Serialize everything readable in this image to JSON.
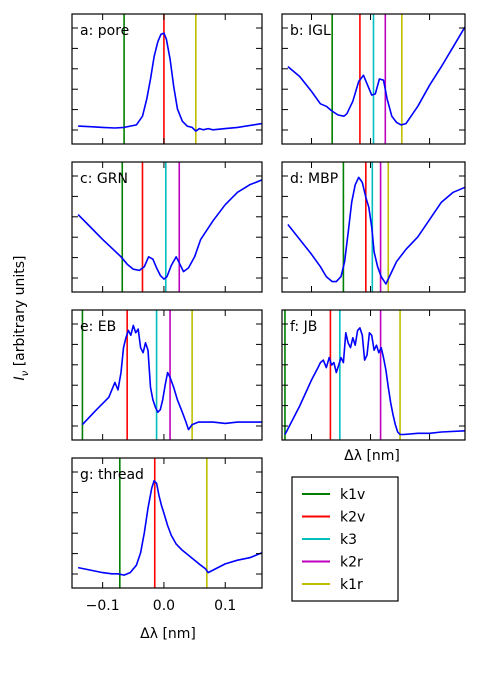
{
  "figure": {
    "ylabel": "I_ν [arbitrary units]",
    "ylabel_main": "I",
    "ylabel_sub": "ν",
    "ylabel_rest": " [arbitrary units]",
    "xlabel": "Δλ [nm]"
  },
  "legend": {
    "items": [
      {
        "label": "k1v",
        "color": "#008000"
      },
      {
        "label": "k2v",
        "color": "#ff0000"
      },
      {
        "label": "k3",
        "color": "#00bfbf"
      },
      {
        "label": "k2r",
        "color": "#bf00bf"
      },
      {
        "label": "k1r",
        "color": "#bfbf00"
      }
    ]
  },
  "chart_data": [
    {
      "type": "line",
      "title": "a: pore",
      "xlim": [
        -0.15,
        0.16
      ],
      "ylim": [
        0,
        1
      ],
      "x_ticks": [
        -0.1,
        0.0,
        0.1
      ],
      "x_tick_labels": [],
      "line_color": "#0000ff",
      "series": [
        {
          "x": [
            -0.14,
            -0.12,
            -0.1,
            -0.08,
            -0.065,
            -0.055,
            -0.045,
            -0.035,
            -0.028,
            -0.022,
            -0.016,
            -0.01,
            -0.005,
            0.0,
            0.004,
            0.01,
            0.016,
            0.022,
            0.03,
            0.038,
            0.046,
            0.052,
            0.058,
            0.064,
            0.072,
            0.08,
            0.1,
            0.12,
            0.16
          ],
          "y": [
            0.12,
            0.115,
            0.11,
            0.105,
            0.11,
            0.12,
            0.13,
            0.2,
            0.34,
            0.5,
            0.68,
            0.8,
            0.86,
            0.87,
            0.82,
            0.66,
            0.44,
            0.26,
            0.16,
            0.12,
            0.11,
            0.08,
            0.1,
            0.09,
            0.1,
            0.09,
            0.1,
            0.11,
            0.14
          ]
        }
      ],
      "markers": {
        "k1v": -0.065,
        "k2v": 0.0,
        "k1r": 0.052
      }
    },
    {
      "type": "line",
      "title": "b: IGL",
      "xlim": [
        -0.15,
        0.16
      ],
      "ylim": [
        0,
        1
      ],
      "x_ticks": [
        -0.1,
        0.0,
        0.1
      ],
      "x_tick_labels": [],
      "line_color": "#0000ff",
      "series": [
        {
          "x": [
            -0.14,
            -0.12,
            -0.1,
            -0.085,
            -0.075,
            -0.065,
            -0.055,
            -0.045,
            -0.04,
            -0.03,
            -0.02,
            -0.012,
            -0.005,
            0.002,
            0.008,
            0.015,
            0.022,
            0.028,
            0.036,
            0.044,
            0.052,
            0.06,
            0.08,
            0.1,
            0.12,
            0.14,
            0.16
          ],
          "y": [
            0.6,
            0.52,
            0.4,
            0.3,
            0.28,
            0.24,
            0.21,
            0.2,
            0.22,
            0.32,
            0.48,
            0.53,
            0.45,
            0.37,
            0.38,
            0.5,
            0.49,
            0.34,
            0.2,
            0.15,
            0.13,
            0.14,
            0.28,
            0.45,
            0.6,
            0.76,
            0.92
          ]
        }
      ],
      "markers": {
        "k1v": -0.065,
        "k2v": -0.018,
        "k3": 0.005,
        "k2r": 0.025,
        "k1r": 0.053
      }
    },
    {
      "type": "line",
      "title": "c: GRN",
      "xlim": [
        -0.15,
        0.16
      ],
      "ylim": [
        0,
        1
      ],
      "x_ticks": [
        -0.1,
        0.0,
        0.1
      ],
      "x_tick_labels": [],
      "line_color": "#0000ff",
      "series": [
        {
          "x": [
            -0.14,
            -0.12,
            -0.1,
            -0.085,
            -0.07,
            -0.06,
            -0.05,
            -0.04,
            -0.032,
            -0.025,
            -0.018,
            -0.012,
            -0.006,
            0.0,
            0.005,
            0.012,
            0.02,
            0.026,
            0.032,
            0.04,
            0.05,
            0.06,
            0.08,
            0.1,
            0.12,
            0.14,
            0.16
          ],
          "y": [
            0.6,
            0.5,
            0.4,
            0.33,
            0.26,
            0.2,
            0.16,
            0.15,
            0.18,
            0.26,
            0.24,
            0.17,
            0.11,
            0.08,
            0.1,
            0.19,
            0.26,
            0.2,
            0.14,
            0.17,
            0.26,
            0.4,
            0.55,
            0.68,
            0.78,
            0.84,
            0.88
          ]
        }
      ],
      "markers": {
        "k1v": -0.068,
        "k2v": -0.035,
        "k3": 0.003,
        "k2r": 0.025
      }
    },
    {
      "type": "line",
      "title": "d: MBP",
      "xlim": [
        -0.15,
        0.16
      ],
      "ylim": [
        0,
        1
      ],
      "x_ticks": [
        -0.1,
        0.0,
        0.1
      ],
      "x_tick_labels": [],
      "line_color": "#0000ff",
      "series": [
        {
          "x": [
            -0.14,
            -0.12,
            -0.1,
            -0.085,
            -0.075,
            -0.065,
            -0.058,
            -0.05,
            -0.044,
            -0.038,
            -0.032,
            -0.026,
            -0.02,
            -0.014,
            -0.008,
            -0.003,
            0.002,
            0.006,
            0.012,
            0.018,
            0.026,
            0.034,
            0.044,
            0.06,
            0.08,
            0.1,
            0.12,
            0.14,
            0.16
          ],
          "y": [
            0.52,
            0.4,
            0.28,
            0.18,
            0.1,
            0.06,
            0.06,
            0.1,
            0.22,
            0.45,
            0.7,
            0.84,
            0.9,
            0.86,
            0.74,
            0.66,
            0.5,
            0.3,
            0.18,
            0.1,
            0.04,
            0.12,
            0.22,
            0.32,
            0.42,
            0.56,
            0.7,
            0.78,
            0.82
          ]
        }
      ],
      "markers": {
        "k1v": -0.046,
        "k2v": -0.008,
        "k3": 0.003,
        "k2r": 0.017,
        "k1r": 0.03
      }
    },
    {
      "type": "line",
      "title": "e: EB",
      "xlim": [
        -0.15,
        0.16
      ],
      "ylim": [
        0,
        1
      ],
      "x_ticks": [
        -0.1,
        0.0,
        0.1
      ],
      "x_tick_labels": [],
      "line_color": "#0000ff",
      "series": [
        {
          "x": [
            -0.133,
            -0.11,
            -0.09,
            -0.08,
            -0.075,
            -0.07,
            -0.066,
            -0.062,
            -0.058,
            -0.054,
            -0.05,
            -0.046,
            -0.042,
            -0.038,
            -0.034,
            -0.03,
            -0.026,
            -0.022,
            -0.018,
            -0.014,
            -0.01,
            -0.006,
            -0.002,
            0.002,
            0.006,
            0.01,
            0.016,
            0.022,
            0.03,
            0.036,
            0.04,
            0.046,
            0.056,
            0.08,
            0.1,
            0.12,
            0.16
          ],
          "y": [
            0.1,
            0.22,
            0.32,
            0.44,
            0.38,
            0.52,
            0.72,
            0.8,
            0.86,
            0.82,
            0.9,
            0.84,
            0.87,
            0.72,
            0.68,
            0.76,
            0.7,
            0.4,
            0.3,
            0.24,
            0.2,
            0.22,
            0.3,
            0.42,
            0.52,
            0.48,
            0.4,
            0.3,
            0.2,
            0.12,
            0.06,
            0.1,
            0.12,
            0.12,
            0.11,
            0.12,
            0.12
          ]
        }
      ],
      "markers": {
        "k1v": -0.133,
        "k2v": -0.06,
        "k3": -0.012,
        "k2r": 0.01,
        "k1r": 0.046
      }
    },
    {
      "type": "line",
      "title": "f: JB",
      "xlim": [
        -0.15,
        0.16
      ],
      "ylim": [
        0,
        1
      ],
      "x_ticks": [
        -0.1,
        0.0,
        0.1
      ],
      "x_tick_labels": [],
      "line_color": "#0000ff",
      "series": [
        {
          "x": [
            -0.145,
            -0.12,
            -0.1,
            -0.09,
            -0.085,
            -0.08,
            -0.075,
            -0.07,
            -0.066,
            -0.062,
            -0.058,
            -0.054,
            -0.05,
            -0.046,
            -0.042,
            -0.038,
            -0.034,
            -0.03,
            -0.026,
            -0.022,
            -0.018,
            -0.014,
            -0.01,
            -0.006,
            -0.002,
            0.002,
            0.006,
            0.01,
            0.014,
            0.018,
            0.022,
            0.026,
            0.03,
            0.034,
            0.038,
            0.042,
            0.046,
            0.05,
            0.056,
            0.08,
            0.1,
            0.12,
            0.16
          ],
          "y": [
            0.02,
            0.25,
            0.46,
            0.55,
            0.6,
            0.62,
            0.56,
            0.64,
            0.58,
            0.6,
            0.52,
            0.58,
            0.64,
            0.6,
            0.84,
            0.76,
            0.72,
            0.8,
            0.74,
            0.86,
            0.88,
            0.82,
            0.62,
            0.66,
            0.84,
            0.82,
            0.7,
            0.74,
            0.68,
            0.72,
            0.64,
            0.54,
            0.4,
            0.28,
            0.18,
            0.1,
            0.04,
            0.02,
            0.02,
            0.03,
            0.03,
            0.04,
            0.05
          ]
        }
      ],
      "markers": {
        "k1v": -0.145,
        "k2v": -0.068,
        "k3": -0.052,
        "k2r": 0.017,
        "k1r": 0.05
      }
    },
    {
      "type": "line",
      "title": "g: thread",
      "xlim": [
        -0.15,
        0.16
      ],
      "ylim": [
        0,
        1
      ],
      "x_ticks": [
        -0.1,
        0.0,
        0.1
      ],
      "x_tick_labels": [
        "−0.1",
        "0.0",
        "0.1"
      ],
      "line_color": "#0000ff",
      "series": [
        {
          "x": [
            -0.14,
            -0.12,
            -0.1,
            -0.085,
            -0.075,
            -0.065,
            -0.055,
            -0.045,
            -0.038,
            -0.032,
            -0.026,
            -0.02,
            -0.016,
            -0.012,
            -0.008,
            -0.004,
            0.0,
            0.006,
            0.012,
            0.02,
            0.03,
            0.04,
            0.05,
            0.06,
            0.068,
            0.072,
            0.08,
            0.1,
            0.12,
            0.14,
            0.16
          ],
          "y": [
            0.14,
            0.12,
            0.1,
            0.09,
            0.09,
            0.08,
            0.1,
            0.16,
            0.26,
            0.42,
            0.62,
            0.78,
            0.84,
            0.82,
            0.72,
            0.64,
            0.58,
            0.48,
            0.4,
            0.33,
            0.28,
            0.24,
            0.2,
            0.16,
            0.13,
            0.1,
            0.12,
            0.17,
            0.2,
            0.22,
            0.26
          ]
        }
      ],
      "markers": {
        "k1v": -0.072,
        "k2v": -0.015,
        "k1r": 0.07
      }
    }
  ]
}
